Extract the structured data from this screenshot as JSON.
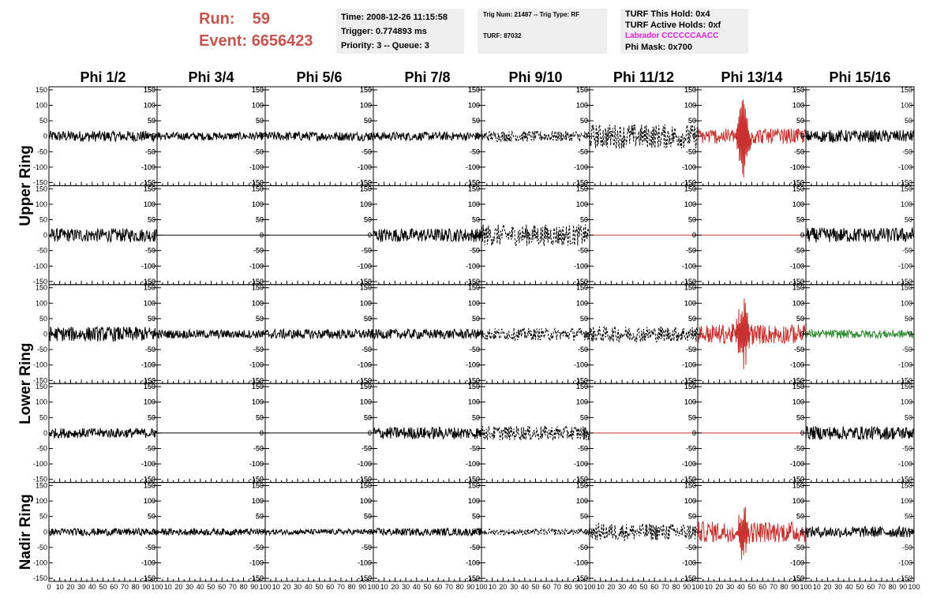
{
  "header": {
    "run_label": "Run:",
    "run_value": "59",
    "event_label": "Event:",
    "event_value": "6656423",
    "run_color": "#c8534c",
    "time_box": {
      "time": "Time: 2008-12-26 11:15:58",
      "trigger": "Trigger: 0.774893 ms",
      "priority": "Priority: 3 -- Queue: 3"
    },
    "trig_box": {
      "trig": "Trig Num: 21487 -- Trig Type: RF",
      "turf": "TURF: 87032"
    },
    "turf_box": {
      "hold": "TURF This Hold: 0x4",
      "active": "TURF Active Holds: 0xf",
      "labrador": "Labrador CCCCCCAACC",
      "labrador_color": "#e020e0",
      "phimask": "Phi Mask: 0x700"
    }
  },
  "chart_data": {
    "type": "line",
    "columns": [
      "Phi 1/2",
      "Phi 3/4",
      "Phi 5/6",
      "Phi 7/8",
      "Phi 9/10",
      "Phi 11/12",
      "Phi 13/14",
      "Phi 15/16"
    ],
    "rows": [
      "Upper Ring",
      "Lower Ring",
      "Nadir Ring"
    ],
    "ylim": [
      -160,
      160
    ],
    "xlim": [
      0,
      100
    ],
    "y_ticks": [
      150,
      100,
      50,
      0,
      -50,
      -100,
      -150
    ],
    "x_ticks": [
      0,
      10,
      20,
      30,
      40,
      50,
      60,
      70,
      80,
      90,
      100
    ],
    "colors": {
      "normal": "#000000",
      "masked": "#c8322e",
      "trigger": "#2e8b2e"
    },
    "panels": [
      {
        "col": 0,
        "sub": 0,
        "amp": 18,
        "style": "solid",
        "color": "normal"
      },
      {
        "col": 0,
        "sub": 1,
        "amp": 22,
        "style": "solid",
        "color": "normal"
      },
      {
        "col": 1,
        "sub": 0,
        "amp": 13,
        "style": "solid",
        "color": "normal"
      },
      {
        "col": 1,
        "sub": 1,
        "amp": 0,
        "style": "solid",
        "color": "normal"
      },
      {
        "col": 2,
        "sub": 0,
        "amp": 15,
        "style": "solid",
        "color": "normal"
      },
      {
        "col": 2,
        "sub": 1,
        "amp": 0,
        "style": "solid",
        "color": "normal"
      },
      {
        "col": 3,
        "sub": 0,
        "amp": 14,
        "style": "solid",
        "color": "normal"
      },
      {
        "col": 3,
        "sub": 1,
        "amp": 22,
        "style": "solid",
        "color": "normal"
      },
      {
        "col": 4,
        "sub": 0,
        "amp": 18,
        "style": "dashed",
        "color": "normal"
      },
      {
        "col": 4,
        "sub": 1,
        "amp": 35,
        "style": "dashed",
        "color": "normal"
      },
      {
        "col": 5,
        "sub": 0,
        "amp": 40,
        "style": "dashed",
        "color": "normal"
      },
      {
        "col": 5,
        "sub": 1,
        "amp": 0,
        "style": "solid",
        "color": "masked"
      },
      {
        "col": 6,
        "sub": 0,
        "amp": 25,
        "style": "solid",
        "color": "masked",
        "spike": 130
      },
      {
        "col": 6,
        "sub": 1,
        "amp": 0,
        "style": "solid",
        "color": "masked"
      },
      {
        "col": 7,
        "sub": 0,
        "amp": 20,
        "style": "solid",
        "color": "normal"
      },
      {
        "col": 7,
        "sub": 1,
        "amp": 24,
        "style": "solid",
        "color": "normal"
      },
      {
        "col": 0,
        "sub": 2,
        "amp": 24,
        "style": "solid",
        "color": "normal"
      },
      {
        "col": 0,
        "sub": 3,
        "amp": 16,
        "style": "solid",
        "color": "normal"
      },
      {
        "col": 1,
        "sub": 2,
        "amp": 14,
        "style": "solid",
        "color": "normal"
      },
      {
        "col": 1,
        "sub": 3,
        "amp": 0,
        "style": "solid",
        "color": "normal"
      },
      {
        "col": 2,
        "sub": 2,
        "amp": 16,
        "style": "solid",
        "color": "normal"
      },
      {
        "col": 2,
        "sub": 3,
        "amp": 0,
        "style": "solid",
        "color": "normal"
      },
      {
        "col": 3,
        "sub": 2,
        "amp": 16,
        "style": "solid",
        "color": "normal"
      },
      {
        "col": 3,
        "sub": 3,
        "amp": 20,
        "style": "solid",
        "color": "normal"
      },
      {
        "col": 4,
        "sub": 2,
        "amp": 20,
        "style": "dashed",
        "color": "normal"
      },
      {
        "col": 4,
        "sub": 3,
        "amp": 24,
        "style": "dashed",
        "color": "normal"
      },
      {
        "col": 5,
        "sub": 2,
        "amp": 26,
        "style": "dashed",
        "color": "normal"
      },
      {
        "col": 5,
        "sub": 3,
        "amp": 0,
        "style": "solid",
        "color": "masked"
      },
      {
        "col": 6,
        "sub": 2,
        "amp": 32,
        "style": "solid",
        "color": "masked",
        "spike": 110
      },
      {
        "col": 6,
        "sub": 3,
        "amp": 0,
        "style": "solid",
        "color": "masked"
      },
      {
        "col": 7,
        "sub": 2,
        "amp": 14,
        "style": "solid",
        "color": "trigger"
      },
      {
        "col": 7,
        "sub": 3,
        "amp": 22,
        "style": "solid",
        "color": "normal"
      },
      {
        "col": 0,
        "sub": 4,
        "amp": 12,
        "style": "solid",
        "color": "normal"
      },
      {
        "col": 1,
        "sub": 4,
        "amp": 11,
        "style": "solid",
        "color": "normal"
      },
      {
        "col": 2,
        "sub": 4,
        "amp": 9,
        "style": "solid",
        "color": "normal"
      },
      {
        "col": 3,
        "sub": 4,
        "amp": 12,
        "style": "solid",
        "color": "normal"
      },
      {
        "col": 4,
        "sub": 4,
        "amp": 10,
        "style": "dashed",
        "color": "normal"
      },
      {
        "col": 5,
        "sub": 4,
        "amp": 28,
        "style": "dashed",
        "color": "normal"
      },
      {
        "col": 6,
        "sub": 4,
        "amp": 34,
        "style": "solid",
        "color": "masked",
        "spike": 75
      },
      {
        "col": 7,
        "sub": 4,
        "amp": 18,
        "style": "solid",
        "color": "normal"
      }
    ]
  }
}
